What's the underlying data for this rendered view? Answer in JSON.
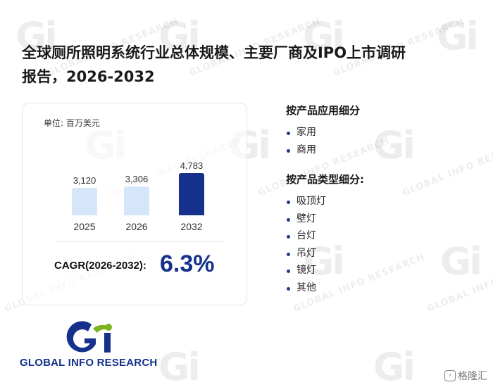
{
  "report": {
    "title_line1": "全球厕所照明系统行业总体规模、主要厂商及IPO上市调研",
    "title_line2": "报告，2026-2032"
  },
  "card": {
    "unit_label": "单位: 百万美元",
    "cagr_label": "CAGR(2026-2032):",
    "cagr_value": "6.3%"
  },
  "chart_data": {
    "type": "bar",
    "categories": [
      "2025",
      "2026",
      "2032"
    ],
    "values": [
      3120,
      3306,
      4783
    ],
    "value_labels": [
      "3,120",
      "3,306",
      "4,783"
    ],
    "colors": [
      "#d5e6fb",
      "#d5e6fb",
      "#15318c"
    ],
    "title": "",
    "xlabel": "",
    "ylabel": "单位: 百万美元"
  },
  "segments": {
    "application": {
      "heading": "按产品应用细分",
      "items": [
        "家用",
        "商用"
      ]
    },
    "type": {
      "heading": "按产品类型细分:",
      "items": [
        "吸顶灯",
        "壁灯",
        "台灯",
        "吊灯",
        "镜灯",
        "其他"
      ]
    }
  },
  "brand": {
    "logo_text": "GLOBAL INFO RESEARCH",
    "watermark_text": "GLOBAL INFO RESEARCH",
    "watermark_logo": "Gi",
    "primary_color": "#15318c",
    "accent_color": "#7ab51d"
  },
  "footer": {
    "source_label": "格隆汇"
  }
}
